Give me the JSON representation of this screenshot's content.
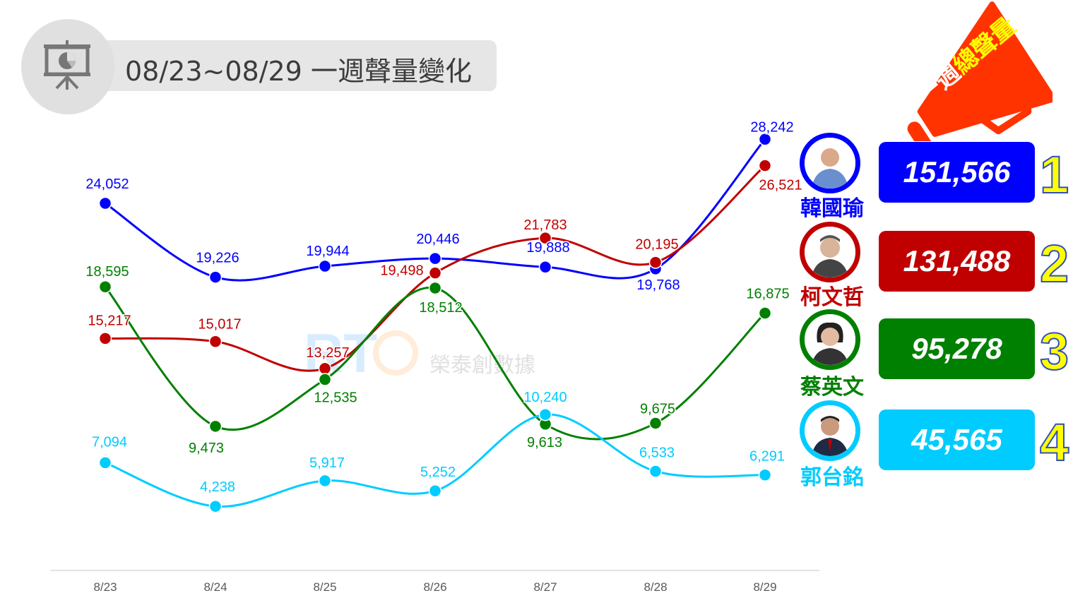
{
  "header": {
    "title": "08/23~08/29 一週聲量變化",
    "icon": "presentation-chart-icon"
  },
  "megaphone": {
    "label_white": "一週",
    "label_yellow": "總聲量",
    "color": "#ff3300"
  },
  "watermark": {
    "logo": "RTC",
    "text": "榮泰創數據"
  },
  "chart_data": {
    "type": "line",
    "categories": [
      "8/23",
      "8/24",
      "8/25",
      "8/26",
      "8/27",
      "8/28",
      "8/29"
    ],
    "grid": false,
    "series": [
      {
        "name": "韓國瑜",
        "color": "#0000ff",
        "values": [
          24052,
          19226,
          19944,
          20446,
          19888,
          19768,
          28242
        ],
        "labels": [
          "24,052",
          "19,226",
          "19,944",
          "20,446",
          "19,888",
          "19,768",
          "28,242"
        ]
      },
      {
        "name": "柯文哲",
        "color": "#c00000",
        "values": [
          15217,
          15017,
          13257,
          19498,
          21783,
          20195,
          26521
        ],
        "labels": [
          "15,217",
          "15,017",
          "13,257",
          "19,498",
          "21,783",
          "20,195",
          "26,521"
        ]
      },
      {
        "name": "蔡英文",
        "color": "#008000",
        "values": [
          18595,
          9473,
          12535,
          18512,
          9613,
          9675,
          16875
        ],
        "labels": [
          "18,595",
          "9,473",
          "12,535",
          "18,512",
          "9,613",
          "9,675",
          "16,875"
        ]
      },
      {
        "name": "郭台銘",
        "color": "#00ccff",
        "values": [
          7094,
          4238,
          5917,
          5252,
          10240,
          6533,
          6291
        ],
        "labels": [
          "7,094",
          "4,238",
          "5,917",
          "5,252",
          "10,240",
          "6,533",
          "6,291"
        ]
      }
    ]
  },
  "ranking": [
    {
      "name": "韓國瑜",
      "total": "151,566",
      "rank": "1",
      "color": "#0000ff"
    },
    {
      "name": "柯文哲",
      "total": "131,488",
      "rank": "2",
      "color": "#c00000"
    },
    {
      "name": "蔡英文",
      "total": "95,278",
      "rank": "3",
      "color": "#008000"
    },
    {
      "name": "郭台銘",
      "total": "45,565",
      "rank": "4",
      "color": "#00ccff"
    }
  ]
}
